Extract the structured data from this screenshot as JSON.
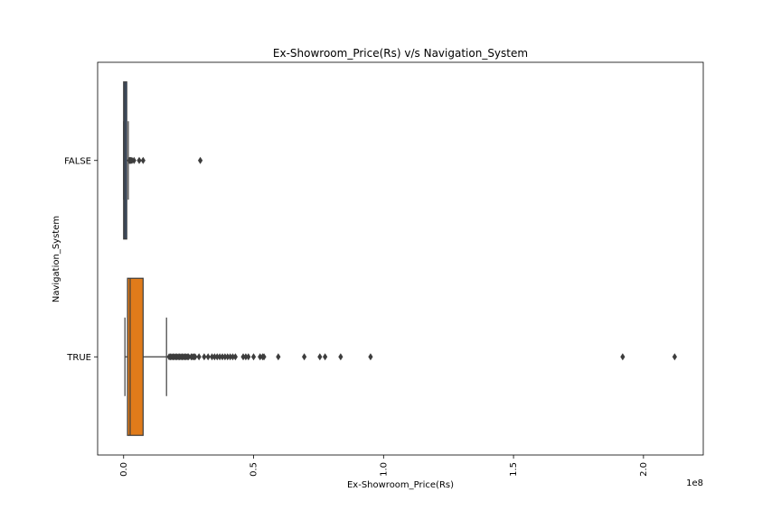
{
  "chart_data": {
    "type": "box",
    "orientation": "horizontal",
    "title": "Ex-Showroom_Price(Rs) v/s Navigation_System",
    "xlabel": "Ex-Showroom_Price(Rs)",
    "ylabel": "Navigation_System",
    "x_offset_label": "1e8",
    "xlim": [
      -0.1,
      2.23
    ],
    "x_ticks": [
      0.0,
      0.5,
      1.0,
      1.5,
      2.0
    ],
    "x_tick_labels": [
      "0.0",
      "0.5",
      "1.0",
      "1.5",
      "2.0"
    ],
    "grid": false,
    "categories": [
      "FALSE",
      "TRUE"
    ],
    "boxes": [
      {
        "category": "FALSE",
        "color": "#3b5b87",
        "whisker_low": 0.0,
        "q1": 0.0,
        "median": 0.005,
        "q3": 0.012,
        "whisker_high": 0.018,
        "outliers": [
          0.022,
          0.025,
          0.028,
          0.032,
          0.04,
          0.06,
          0.075,
          0.295
        ]
      },
      {
        "category": "TRUE",
        "color": "#e07b1a",
        "whisker_low": 0.005,
        "q1": 0.015,
        "median": 0.025,
        "q3": 0.075,
        "whisker_high": 0.165,
        "outliers": [
          0.175,
          0.18,
          0.185,
          0.19,
          0.195,
          0.2,
          0.205,
          0.21,
          0.215,
          0.22,
          0.225,
          0.23,
          0.235,
          0.24,
          0.245,
          0.25,
          0.26,
          0.265,
          0.27,
          0.275,
          0.29,
          0.31,
          0.325,
          0.34,
          0.35,
          0.36,
          0.37,
          0.38,
          0.39,
          0.4,
          0.41,
          0.42,
          0.43,
          0.46,
          0.47,
          0.48,
          0.5,
          0.525,
          0.535,
          0.54,
          0.595,
          0.695,
          0.755,
          0.775,
          0.835,
          0.95,
          1.92,
          2.12
        ]
      }
    ]
  }
}
